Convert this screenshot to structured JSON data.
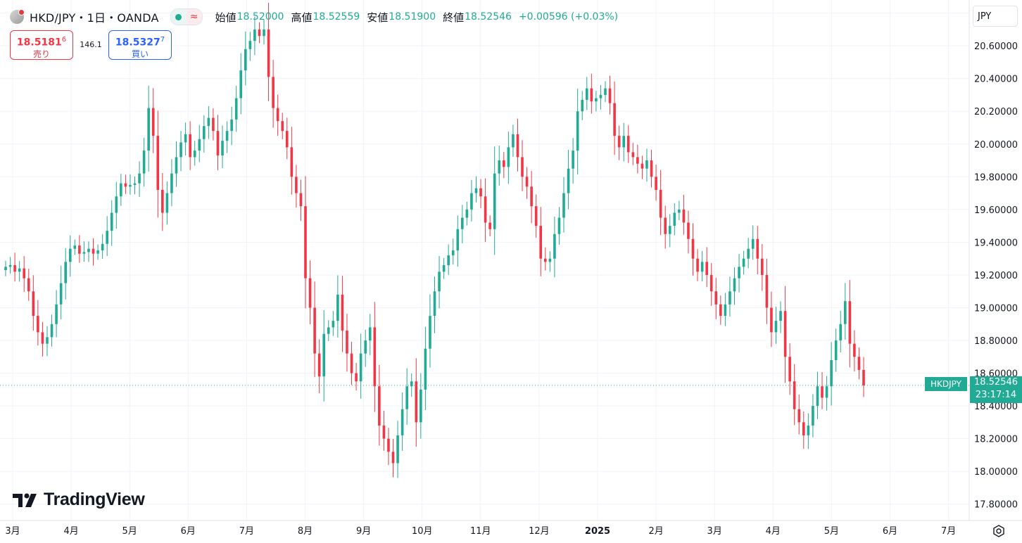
{
  "header": {
    "symbol_title": "HKD/JPY・1日・OANDA",
    "open_label": "始値",
    "open_value": "18.52000",
    "high_label": "高値",
    "high_value": "18.52559",
    "low_label": "安値",
    "low_value": "18.51900",
    "close_label": "終値",
    "close_value": "18.52546",
    "change": "+0.00596 (+0.03%)"
  },
  "trade": {
    "sell_price_main": "18.5181",
    "sell_price_sup": "6",
    "sell_label": "売り",
    "spread": "146.1",
    "buy_price_main": "18.5327",
    "buy_price_sup": "7",
    "buy_label": "買い"
  },
  "currency_button": "JPY",
  "logo_text": "TradingView",
  "price_tag": {
    "symbol": "HKDJPY",
    "price": "18.52546",
    "countdown": "23:17:14"
  },
  "colors": {
    "up": "#22ab94",
    "down": "#f23645",
    "grid": "#f0f3fa"
  },
  "chart_data": {
    "type": "candlestick",
    "title": "HKD/JPY・1日・OANDA",
    "ylim": [
      17.7,
      20.88
    ],
    "y_ticks": [
      17.8,
      18.0,
      18.2,
      18.4,
      18.6,
      18.8,
      19.0,
      19.2,
      19.4,
      19.6,
      19.8,
      20.0,
      20.2,
      20.4,
      20.6,
      20.8
    ],
    "y_tick_labels": [
      "17.80000",
      "18.00000",
      "18.20000",
      "18.40000",
      "18.60000",
      "18.80000",
      "19.00000",
      "19.20000",
      "19.40000",
      "19.60000",
      "19.80000",
      "20.00000",
      "20.20000",
      "20.40000",
      "20.60000",
      "20.80000"
    ],
    "x_labels": [
      "3月",
      "4月",
      "5月",
      "6月",
      "7月",
      "8月",
      "9月",
      "10月",
      "11月",
      "12月",
      "2025",
      "2月",
      "3月",
      "4月",
      "5月",
      "6月",
      "7月"
    ],
    "last_price": 18.52546,
    "approx_closes": [
      19.25,
      19.26,
      19.22,
      19.24,
      19.18,
      19.1,
      18.95,
      18.85,
      18.78,
      18.82,
      18.9,
      19.02,
      19.15,
      19.28,
      19.36,
      19.38,
      19.33,
      19.34,
      19.36,
      19.33,
      19.35,
      19.39,
      19.47,
      19.58,
      19.68,
      19.76,
      19.74,
      19.75,
      19.76,
      19.82,
      19.96,
      20.22,
      20.05,
      19.72,
      19.58,
      19.7,
      19.82,
      19.92,
      20.01,
      20.06,
      19.92,
      19.96,
      20.03,
      20.11,
      20.16,
      20.08,
      19.93,
      20.02,
      20.08,
      20.15,
      20.28,
      20.45,
      20.58,
      20.63,
      20.7,
      20.66,
      20.7,
      20.41,
      20.22,
      20.14,
      20.08,
      19.98,
      19.8,
      19.7,
      19.62,
      19.18,
      19.0,
      18.72,
      18.58,
      18.84,
      18.88,
      18.92,
      19.08,
      18.86,
      18.72,
      18.6,
      18.55,
      18.72,
      18.8,
      18.88,
      18.52,
      18.28,
      18.2,
      18.12,
      18.05,
      18.22,
      18.38,
      18.52,
      18.55,
      18.3,
      18.5,
      18.75,
      18.95,
      19.1,
      19.22,
      19.26,
      19.32,
      19.35,
      19.48,
      19.55,
      19.6,
      19.7,
      19.73,
      19.68,
      19.52,
      19.48,
      19.82,
      19.9,
      19.86,
      19.98,
      20.06,
      19.92,
      19.8,
      19.74,
      19.62,
      19.5,
      19.3,
      19.28,
      19.3,
      19.45,
      19.55,
      19.7,
      19.85,
      19.96,
      20.2,
      20.27,
      20.34,
      20.26,
      20.28,
      20.3,
      20.34,
      20.25,
      20.05,
      19.98,
      20.05,
      19.95,
      19.92,
      19.88,
      19.85,
      19.9,
      19.8,
      19.72,
      19.55,
      19.45,
      19.5,
      19.58,
      19.6,
      19.52,
      19.42,
      19.3,
      19.22,
      19.28,
      19.2,
      19.1,
      19.02,
      18.95,
      19.02,
      19.1,
      19.18,
      19.25,
      19.3,
      19.36,
      19.42,
      19.3,
      19.2,
      19.0,
      18.85,
      18.92,
      18.98,
      18.7,
      18.55,
      18.38,
      18.3,
      18.22,
      18.28,
      18.4,
      18.52,
      18.45,
      18.52,
      18.68,
      18.8,
      18.9,
      19.04,
      18.78,
      18.7,
      18.62,
      18.52546
    ]
  }
}
